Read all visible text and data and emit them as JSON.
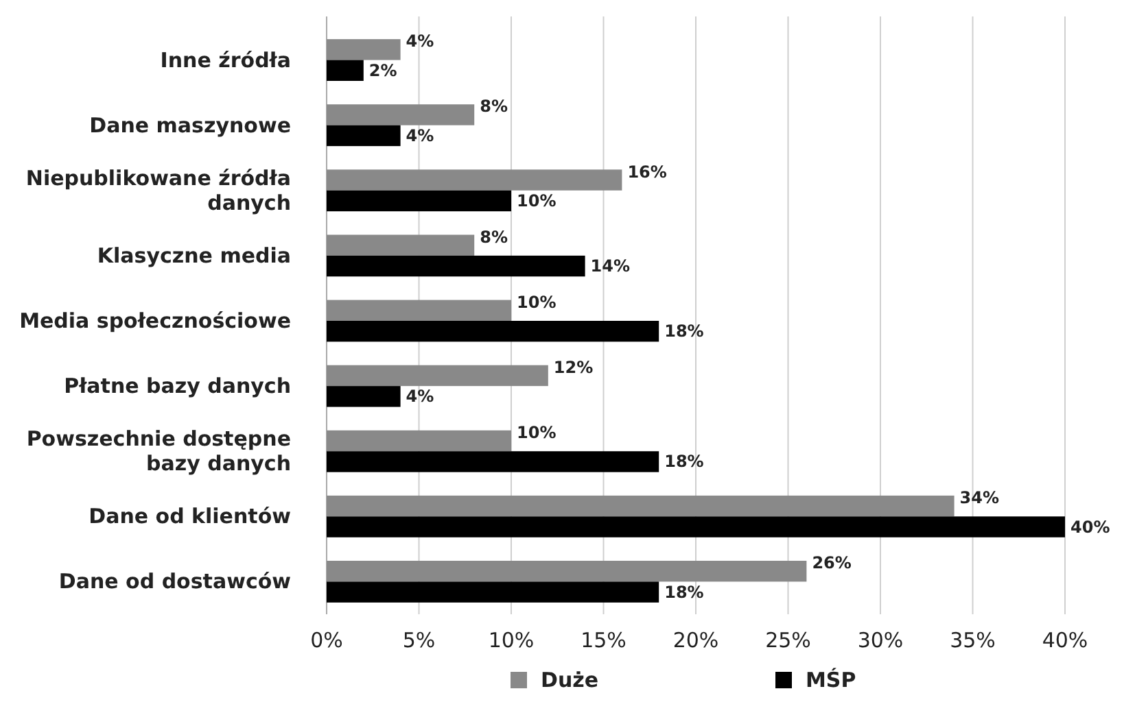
{
  "chart_data": {
    "type": "bar",
    "orientation": "horizontal",
    "categories": [
      "Inne źródła",
      "Dane maszynowe",
      "Niepublikowane źródła danych",
      "Klasyczne media",
      "Media społecznościowe",
      "Płatne bazy danych",
      "Powszechnie dostępne bazy danych",
      "Dane od klientów",
      "Dane od dostawców"
    ],
    "series": [
      {
        "name": "Duże",
        "color": "#898989",
        "values": [
          4,
          8,
          16,
          8,
          10,
          12,
          10,
          34,
          26
        ],
        "value_labels": [
          "4%",
          "8%",
          "16%",
          "8%",
          "10%",
          "12%",
          "10%",
          "34%",
          "26%"
        ]
      },
      {
        "name": "MŚP",
        "color": "#000000",
        "values": [
          2,
          4,
          10,
          14,
          18,
          4,
          18,
          40,
          18
        ],
        "value_labels": [
          "2%",
          "4%",
          "10%",
          "14%",
          "18%",
          "4%",
          "18%",
          "40%",
          "18%"
        ]
      }
    ],
    "xlim": [
      0,
      40
    ],
    "xticks": [
      {
        "value": 0,
        "label": "0%"
      },
      {
        "value": 5,
        "label": "5%"
      },
      {
        "value": 10,
        "label": "10%"
      },
      {
        "value": 15,
        "label": "15%"
      },
      {
        "value": 20,
        "label": "20%"
      },
      {
        "value": 25,
        "label": "25%"
      },
      {
        "value": 30,
        "label": "30%"
      },
      {
        "value": 35,
        "label": "35%"
      },
      {
        "value": 40,
        "label": "40%"
      }
    ],
    "grid": "x",
    "legend": "bottom"
  }
}
